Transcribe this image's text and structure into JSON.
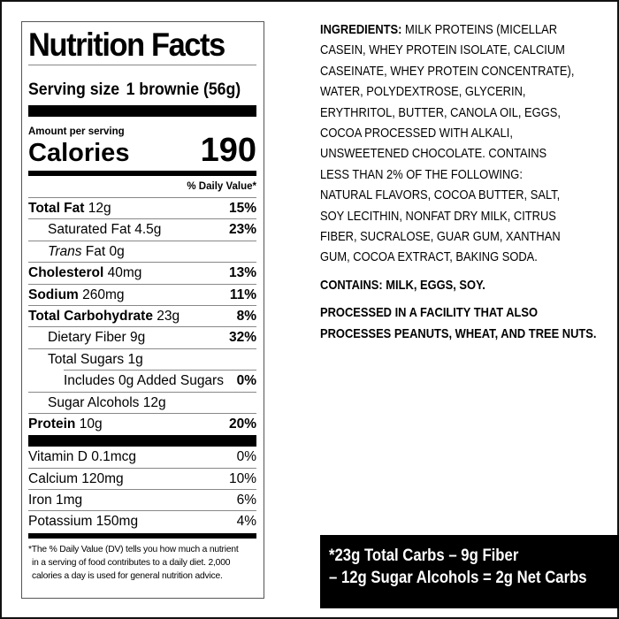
{
  "label": {
    "title": "Nutrition Facts",
    "serving_label": "Serving size",
    "serving_value": "1 brownie (56g)",
    "amount_per_serving": "Amount per serving",
    "calories_label": "Calories",
    "calories_value": "190",
    "dv_header": "% Daily Value*",
    "nutrients": [
      {
        "name": "Total Fat",
        "amount": "12g",
        "dv": "15%"
      },
      {
        "name": "Saturated Fat",
        "amount": "4.5g",
        "dv": "23%"
      },
      {
        "name": "Trans",
        "name2": "Fat",
        "amount": "0g",
        "dv": ""
      },
      {
        "name": "Cholesterol",
        "amount": "40mg",
        "dv": "13%"
      },
      {
        "name": "Sodium",
        "amount": "260mg",
        "dv": "11%"
      },
      {
        "name": "Total Carbohydrate",
        "amount": "23g",
        "dv": "8%"
      },
      {
        "name": "Dietary Fiber",
        "amount": "9g",
        "dv": "32%"
      },
      {
        "name": "Total Sugars",
        "amount": "1g",
        "dv": ""
      },
      {
        "name": "Includes 0g Added Sugars",
        "amount": "",
        "dv": "0%"
      },
      {
        "name": "Sugar Alcohols",
        "amount": "12g",
        "dv": ""
      },
      {
        "name": "Protein",
        "amount": "10g",
        "dv": "20%"
      }
    ],
    "vitamins": [
      {
        "name": "Vitamin D 0.1mcg",
        "dv": "0%"
      },
      {
        "name": "Calcium 120mg",
        "dv": "10%"
      },
      {
        "name": "Iron 1mg",
        "dv": "6%"
      },
      {
        "name": "Potassium 150mg",
        "dv": "4%"
      }
    ],
    "footnote": [
      "*The % Daily Value (DV) tells you how much a nutrient",
      "in a serving of food contributes to a daily diet. 2,000",
      "calories a day is used for general nutrition advice."
    ]
  },
  "ingredients": {
    "heading": "INGREDIENTS:",
    "lines": [
      " MILK PROTEINS (MICELLAR",
      "CASEIN, WHEY PROTEIN ISOLATE, CALCIUM",
      "CASEINATE, WHEY PROTEIN CONCENTRATE),",
      "WATER, POLYDEXTROSE, GLYCERIN,",
      "ERYTHRITOL, BUTTER, CANOLA OIL, EGGS,",
      "COCOA PROCESSED WITH ALKALI,",
      "UNSWEETENED CHOCOLATE. CONTAINS",
      "LESS THAN 2% OF THE FOLLOWING:",
      "NATURAL FLAVORS, COCOA BUTTER, SALT,",
      "SOY LECITHIN, NONFAT DRY MILK, CITRUS",
      "FIBER, SUCRALOSE, GUAR GUM, XANTHAN",
      "GUM, COCOA EXTRACT, BAKING SODA."
    ],
    "contains": "CONTAINS: MILK, EGGS, SOY.",
    "facility": [
      "PROCESSED IN A FACILITY THAT ALSO",
      "PROCESSES PEANUTS, WHEAT, AND TREE NUTS."
    ]
  },
  "net_carbs": [
    "*23g Total Carbs – 9g Fiber",
    "– 12g Sugar Alcohols = 2g Net Carbs"
  ]
}
